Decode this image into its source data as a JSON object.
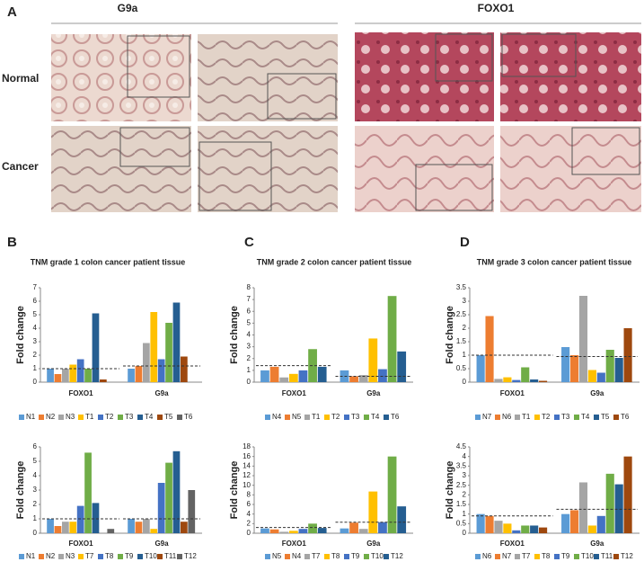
{
  "panel_a": {
    "letter": "A",
    "columns": [
      "G9a",
      "FOXO1"
    ],
    "rows": [
      "Normal",
      "Cancer"
    ]
  },
  "panel_letters": [
    "B",
    "C",
    "D"
  ],
  "chart_data": [
    {
      "type": "bar",
      "title": "TNM grade 1 colon cancer patient tissue",
      "ylabel": "Fold change",
      "categories": [
        "FOXO1",
        "G9a"
      ],
      "ylim": [
        0,
        7
      ],
      "yticks": [
        0,
        1,
        2,
        3,
        4,
        5,
        6,
        7
      ],
      "reference_values": [
        1.0,
        1.2
      ],
      "series": [
        {
          "name": "N1",
          "color": "#5b9bd5",
          "values": [
            1.0,
            1.0
          ]
        },
        {
          "name": "N2",
          "color": "#ed7d31",
          "values": [
            0.6,
            1.2
          ]
        },
        {
          "name": "N3",
          "color": "#a5a5a5",
          "values": [
            1.0,
            2.9
          ]
        },
        {
          "name": "T1",
          "color": "#ffc000",
          "values": [
            1.3,
            5.2
          ]
        },
        {
          "name": "T2",
          "color": "#4472c4",
          "values": [
            1.7,
            1.7
          ]
        },
        {
          "name": "T3",
          "color": "#70ad47",
          "values": [
            1.0,
            4.4
          ]
        },
        {
          "name": "T4",
          "color": "#255e91",
          "values": [
            5.1,
            5.9
          ]
        },
        {
          "name": "T5",
          "color": "#9e480e",
          "values": [
            0.2,
            1.9
          ]
        },
        {
          "name": "T6",
          "color": "#636363",
          "values": [
            0,
            0
          ]
        }
      ]
    },
    {
      "type": "bar",
      "ylabel": "Fold change",
      "categories": [
        "FOXO1",
        "G9a"
      ],
      "ylim": [
        0,
        6
      ],
      "yticks": [
        0,
        1,
        2,
        3,
        4,
        5,
        6
      ],
      "reference_values": [
        1.0,
        1.0
      ],
      "series": [
        {
          "name": "N1",
          "color": "#5b9bd5",
          "values": [
            1.0,
            1.0
          ]
        },
        {
          "name": "N2",
          "color": "#ed7d31",
          "values": [
            0.5,
            0.8
          ]
        },
        {
          "name": "N3",
          "color": "#a5a5a5",
          "values": [
            0.8,
            1.0
          ]
        },
        {
          "name": "T7",
          "color": "#ffc000",
          "values": [
            0.8,
            0.3
          ]
        },
        {
          "name": "T8",
          "color": "#4472c4",
          "values": [
            1.9,
            3.5
          ]
        },
        {
          "name": "T9",
          "color": "#70ad47",
          "values": [
            5.6,
            4.9
          ]
        },
        {
          "name": "T10",
          "color": "#255e91",
          "values": [
            2.1,
            5.7
          ]
        },
        {
          "name": "T11",
          "color": "#9e480e",
          "values": [
            0,
            0.8
          ]
        },
        {
          "name": "T12",
          "color": "#636363",
          "values": [
            0.3,
            3.0
          ]
        }
      ]
    },
    {
      "type": "bar",
      "title": "TNM grade 2 colon cancer patient tissue",
      "ylabel": "Fold change",
      "categories": [
        "FOXO1",
        "G9a"
      ],
      "ylim": [
        0,
        8
      ],
      "yticks": [
        0,
        1,
        2,
        3,
        4,
        5,
        6,
        7,
        8
      ],
      "reference_values": [
        1.4,
        0.5
      ],
      "series": [
        {
          "name": "N4",
          "color": "#5b9bd5",
          "values": [
            1.0,
            1.0
          ]
        },
        {
          "name": "N5",
          "color": "#ed7d31",
          "values": [
            1.3,
            0.5
          ]
        },
        {
          "name": "T1",
          "color": "#a5a5a5",
          "values": [
            0.4,
            0.6
          ]
        },
        {
          "name": "T2",
          "color": "#ffc000",
          "values": [
            0.7,
            3.7
          ]
        },
        {
          "name": "T3",
          "color": "#4472c4",
          "values": [
            1.0,
            1.1
          ]
        },
        {
          "name": "T4",
          "color": "#70ad47",
          "values": [
            2.8,
            7.3
          ]
        },
        {
          "name": "T6",
          "color": "#255e91",
          "values": [
            1.3,
            2.6
          ]
        }
      ]
    },
    {
      "type": "bar",
      "ylabel": "Fold change",
      "categories": [
        "FOXO1",
        "G9a"
      ],
      "ylim": [
        0,
        18
      ],
      "yticks": [
        0,
        2,
        4,
        6,
        8,
        10,
        12,
        14,
        16,
        18
      ],
      "reference_values": [
        1.2,
        2.3
      ],
      "series": [
        {
          "name": "N5",
          "color": "#5b9bd5",
          "values": [
            1.0,
            1.0
          ]
        },
        {
          "name": "N4",
          "color": "#ed7d31",
          "values": [
            0.8,
            2.2
          ]
        },
        {
          "name": "T7",
          "color": "#a5a5a5",
          "values": [
            0.3,
            0.9
          ]
        },
        {
          "name": "T8",
          "color": "#ffc000",
          "values": [
            0.5,
            8.7
          ]
        },
        {
          "name": "T9",
          "color": "#4472c4",
          "values": [
            0.9,
            2.3
          ]
        },
        {
          "name": "T10",
          "color": "#70ad47",
          "values": [
            2.0,
            16.0
          ]
        },
        {
          "name": "T12",
          "color": "#255e91",
          "values": [
            1.1,
            5.6
          ]
        }
      ]
    },
    {
      "type": "bar",
      "title": "TNM grade 3 colon cancer patient tissue",
      "ylabel": "Fold change",
      "categories": [
        "FOXO1",
        "G9a"
      ],
      "ylim": [
        0,
        3.5
      ],
      "yticks": [
        0,
        0.5,
        1,
        1.5,
        2,
        2.5,
        3,
        3.5
      ],
      "reference_values": [
        1.0,
        0.95
      ],
      "series": [
        {
          "name": "N7",
          "color": "#5b9bd5",
          "values": [
            1.0,
            1.3
          ]
        },
        {
          "name": "N6",
          "color": "#ed7d31",
          "values": [
            2.45,
            1.0
          ]
        },
        {
          "name": "T1",
          "color": "#a5a5a5",
          "values": [
            0.12,
            3.2
          ]
        },
        {
          "name": "T2",
          "color": "#ffc000",
          "values": [
            0.18,
            0.45
          ]
        },
        {
          "name": "T3",
          "color": "#4472c4",
          "values": [
            0.08,
            0.35
          ]
        },
        {
          "name": "T4",
          "color": "#70ad47",
          "values": [
            0.55,
            1.2
          ]
        },
        {
          "name": "T5",
          "color": "#255e91",
          "values": [
            0.1,
            0.9
          ]
        },
        {
          "name": "T6",
          "color": "#9e480e",
          "values": [
            0.05,
            2.0
          ]
        }
      ]
    },
    {
      "type": "bar",
      "ylabel": "Fold change",
      "categories": [
        "FOXO1",
        "G9a"
      ],
      "ylim": [
        0,
        4.5
      ],
      "yticks": [
        0,
        0.5,
        1,
        1.5,
        2,
        2.5,
        3,
        3.5,
        4,
        4.5
      ],
      "reference_values": [
        0.9,
        1.25
      ],
      "series": [
        {
          "name": "N6",
          "color": "#5b9bd5",
          "values": [
            1.0,
            1.0
          ]
        },
        {
          "name": "N7",
          "color": "#ed7d31",
          "values": [
            0.9,
            1.2
          ]
        },
        {
          "name": "T7",
          "color": "#a5a5a5",
          "values": [
            0.65,
            2.65
          ]
        },
        {
          "name": "T8",
          "color": "#ffc000",
          "values": [
            0.5,
            0.4
          ]
        },
        {
          "name": "T9",
          "color": "#4472c4",
          "values": [
            0.15,
            0.9
          ]
        },
        {
          "name": "T10",
          "color": "#70ad47",
          "values": [
            0.4,
            3.1
          ]
        },
        {
          "name": "T11",
          "color": "#255e91",
          "values": [
            0.4,
            2.55
          ]
        },
        {
          "name": "T12",
          "color": "#9e480e",
          "values": [
            0.3,
            4.0
          ]
        }
      ]
    }
  ]
}
